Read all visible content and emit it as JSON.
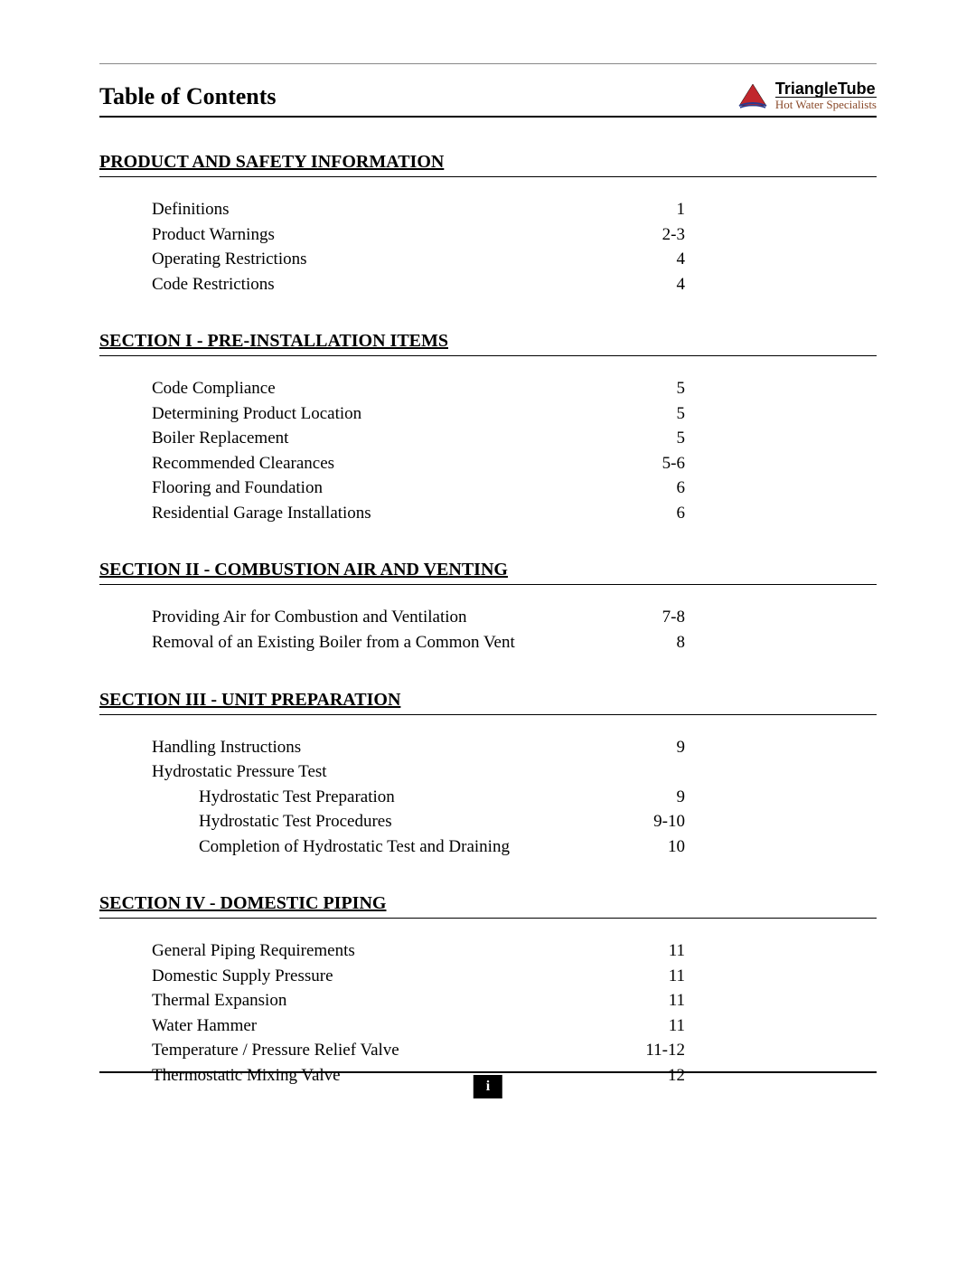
{
  "colors": {
    "text": "#000000",
    "background": "#ffffff",
    "rule": "#000000",
    "top_rule": "#888888",
    "logo_triangle_fill": "#c1272d",
    "logo_swoosh": "#2a3b8f",
    "logo_tag": "#8a4a2a",
    "footer_bg": "#000000",
    "footer_text": "#ffffff"
  },
  "typography": {
    "body_font": "Times New Roman",
    "title_size_pt": 20,
    "heading_size_pt": 15,
    "entry_size_pt": 14
  },
  "header": {
    "title": "Table of Contents",
    "logo": {
      "name": "TriangleTube",
      "tagline": "Hot Water Specialists"
    }
  },
  "sections": [
    {
      "heading": "PRODUCT AND SAFETY INFORMATION",
      "entries": [
        {
          "label": "Definitions",
          "page": "1"
        },
        {
          "label": "Product Warnings",
          "page": "2-3"
        },
        {
          "label": "Operating Restrictions",
          "page": "4"
        },
        {
          "label": "Code Restrictions",
          "page": "4"
        }
      ]
    },
    {
      "heading": "SECTION I - PRE-INSTALLATION ITEMS",
      "entries": [
        {
          "label": "Code Compliance",
          "page": "5"
        },
        {
          "label": "Determining Product Location",
          "page": "5"
        },
        {
          "label": "Boiler Replacement",
          "page": "5"
        },
        {
          "label": "Recommended Clearances",
          "page": "5-6"
        },
        {
          "label": "Flooring and Foundation",
          "page": "6"
        },
        {
          "label": "Residential Garage Installations",
          "page": "6"
        }
      ]
    },
    {
      "heading": "SECTION II - COMBUSTION AIR AND VENTING",
      "entries": [
        {
          "label": "Providing Air for Combustion and Ventilation",
          "page": "7-8"
        },
        {
          "label": "Removal of an Existing Boiler from a Common Vent",
          "page": "8"
        }
      ]
    },
    {
      "heading": "SECTION III - UNIT  PREPARATION",
      "entries": [
        {
          "label": "Handling Instructions",
          "page": "9"
        },
        {
          "label": "Hydrostatic Pressure Test",
          "page": "",
          "noleader": true
        },
        {
          "label": "Hydrostatic Test Preparation",
          "page": "9",
          "indent": true
        },
        {
          "label": "Hydrostatic Test Procedures",
          "page": "9-10",
          "indent": true
        },
        {
          "label": "Completion of Hydrostatic Test and Draining",
          "page": "10",
          "indent": true
        }
      ]
    },
    {
      "heading": "SECTION IV - DOMESTIC PIPING",
      "entries": [
        {
          "label": "General Piping Requirements",
          "page": "11"
        },
        {
          "label": "Domestic Supply Pressure",
          "page": "11"
        },
        {
          "label": "Thermal Expansion",
          "page": "11"
        },
        {
          "label": "Water Hammer",
          "page": "11"
        },
        {
          "label": "Temperature / Pressure Relief Valve",
          "page": "11-12"
        },
        {
          "label": "Thermostatic Mixing Valve",
          "page": "12"
        }
      ]
    }
  ],
  "footer": {
    "page_number": "i"
  }
}
